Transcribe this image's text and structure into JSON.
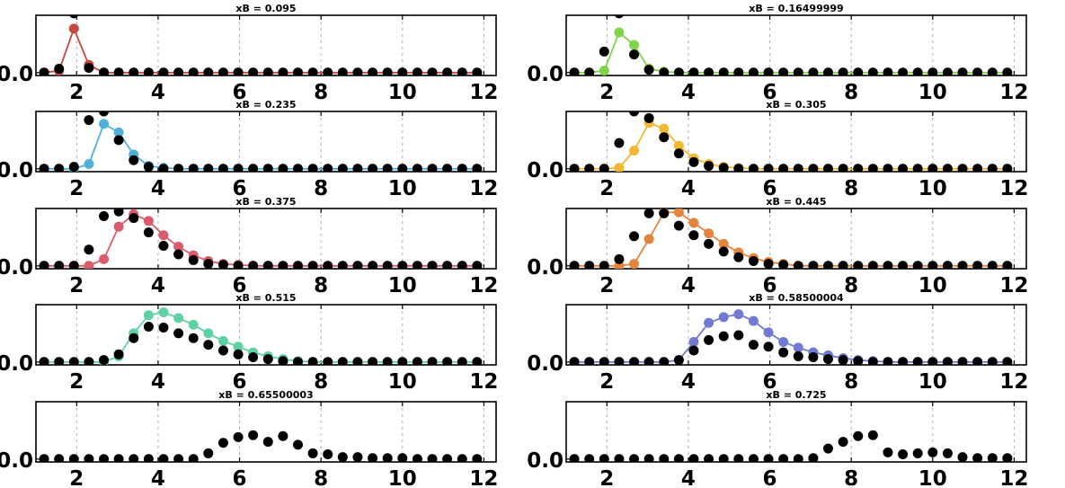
{
  "figure": {
    "xticks": [
      2,
      4,
      6,
      8,
      10,
      12
    ],
    "xlim": [
      1,
      12.3
    ],
    "ylim": [
      -0.03,
      0.6
    ],
    "ytick_label": "0.0",
    "series_colors": [
      "#c9473d",
      "#7fd44a",
      "#4fb0dc",
      "#f2b733",
      "#d95b6c",
      "#e4843f",
      "#5fd1a2",
      "#6f7ad0",
      "",
      ""
    ]
  },
  "chart_data": [
    {
      "type": "scatter",
      "title": "xB = 0.095",
      "x": [
        1.2,
        1.567,
        1.933,
        2.3,
        2.667,
        3.033,
        3.4,
        3.767,
        4.133,
        4.5,
        4.867,
        5.233,
        5.6,
        5.967,
        6.333,
        6.7,
        7.067,
        7.433,
        7.8,
        8.167,
        8.533,
        8.9,
        9.267,
        9.633,
        10,
        10.367,
        10.733,
        11.1,
        11.467,
        11.833
      ],
      "model": [
        0,
        0.02,
        0.46,
        0.08,
        0,
        0,
        0,
        0,
        0,
        0,
        0,
        0,
        0,
        0,
        0,
        0,
        0,
        0,
        0,
        0,
        0,
        0,
        0,
        0,
        0,
        0,
        0,
        0,
        0,
        0
      ],
      "data": [
        0,
        0.04,
        0.62,
        0.05,
        0,
        0,
        0,
        0,
        0,
        0,
        0,
        0,
        0,
        0,
        0,
        0,
        0,
        0,
        0,
        0,
        0,
        0,
        0,
        0,
        0,
        0,
        0,
        0,
        0,
        0
      ]
    },
    {
      "type": "scatter",
      "title": "xB = 0.16499999",
      "x": [
        1.2,
        1.567,
        1.933,
        2.3,
        2.667,
        3.033,
        3.4,
        3.767,
        4.133,
        4.5,
        4.867,
        5.233,
        5.6,
        5.967,
        6.333,
        6.7,
        7.067,
        7.433,
        7.8,
        8.167,
        8.533,
        8.9,
        9.267,
        9.633,
        10,
        10.367,
        10.733,
        11.1,
        11.467,
        11.833
      ],
      "model": [
        0,
        0,
        0.02,
        0.42,
        0.29,
        0.04,
        0.01,
        0,
        0,
        0,
        0,
        0,
        0,
        0,
        0,
        0,
        0,
        0,
        0,
        0,
        0,
        0,
        0,
        0,
        0,
        0,
        0,
        0,
        0,
        0
      ],
      "data": [
        0,
        0,
        0.22,
        0.62,
        0.19,
        0.03,
        0,
        0,
        0,
        0,
        0,
        0,
        0,
        0,
        0,
        0,
        0,
        0,
        0,
        0,
        0,
        0,
        0,
        0,
        0,
        0,
        0,
        0,
        0,
        0
      ]
    },
    {
      "type": "scatter",
      "title": "xB = 0.235",
      "x": [
        1.2,
        1.567,
        1.933,
        2.3,
        2.667,
        3.033,
        3.4,
        3.767,
        4.133,
        4.5,
        4.867,
        5.233,
        5.6,
        5.967,
        6.333,
        6.7,
        7.067,
        7.433,
        7.8,
        8.167,
        8.533,
        8.9,
        9.267,
        9.633,
        10,
        10.367,
        10.733,
        11.1,
        11.467,
        11.833
      ],
      "model": [
        0,
        0,
        0,
        0.05,
        0.47,
        0.38,
        0.15,
        0.03,
        0.01,
        0,
        0,
        0,
        0,
        0,
        0,
        0,
        0,
        0,
        0,
        0,
        0,
        0,
        0,
        0,
        0,
        0,
        0,
        0,
        0,
        0
      ],
      "data": [
        0,
        0,
        0.02,
        0.51,
        0.6,
        0.3,
        0.09,
        0.02,
        0,
        0,
        0,
        0,
        0,
        0,
        0,
        0,
        0,
        0,
        0,
        0,
        0,
        0,
        0,
        0,
        0,
        0,
        0,
        0,
        0,
        0
      ]
    },
    {
      "type": "scatter",
      "title": "xB = 0.305",
      "x": [
        1.2,
        1.567,
        1.933,
        2.3,
        2.667,
        3.033,
        3.4,
        3.767,
        4.133,
        4.5,
        4.867,
        5.233,
        5.6,
        5.967,
        6.333,
        6.7,
        7.067,
        7.433,
        7.8,
        8.167,
        8.533,
        8.9,
        9.267,
        9.633,
        10,
        10.367,
        10.733,
        11.1,
        11.467,
        11.833
      ],
      "model": [
        0,
        0,
        0,
        0.01,
        0.19,
        0.48,
        0.42,
        0.24,
        0.11,
        0.05,
        0.02,
        0.01,
        0,
        0,
        0,
        0,
        0,
        0,
        0,
        0,
        0,
        0,
        0,
        0,
        0,
        0,
        0,
        0,
        0,
        0
      ],
      "data": [
        0,
        0,
        0,
        0.27,
        0.6,
        0.53,
        0.33,
        0.16,
        0.07,
        0.03,
        0.01,
        0,
        0,
        0,
        0,
        0,
        0,
        0,
        0,
        0,
        0,
        0,
        0,
        0,
        0,
        0,
        0,
        0,
        0,
        0
      ]
    },
    {
      "type": "scatter",
      "title": "xB = 0.375",
      "x": [
        1.2,
        1.567,
        1.933,
        2.3,
        2.667,
        3.033,
        3.4,
        3.767,
        4.133,
        4.5,
        4.867,
        5.233,
        5.6,
        5.967,
        6.333,
        6.7,
        7.067,
        7.433,
        7.8,
        8.167,
        8.533,
        8.9,
        9.267,
        9.633,
        10,
        10.367,
        10.733,
        11.1,
        11.467,
        11.833
      ],
      "model": [
        0,
        0,
        0,
        0,
        0.07,
        0.41,
        0.54,
        0.47,
        0.32,
        0.2,
        0.11,
        0.05,
        0.02,
        0.01,
        0,
        0,
        0,
        0,
        0,
        0,
        0,
        0,
        0,
        0,
        0,
        0,
        0,
        0,
        0,
        0
      ],
      "data": [
        0,
        0,
        0,
        0.17,
        0.52,
        0.57,
        0.5,
        0.35,
        0.21,
        0.12,
        0.06,
        0.02,
        0.01,
        0,
        0,
        0,
        0,
        0,
        0,
        0,
        0,
        0,
        0,
        0,
        0,
        0,
        0,
        0,
        0,
        0
      ]
    },
    {
      "type": "scatter",
      "title": "xB = 0.445",
      "x": [
        1.2,
        1.567,
        1.933,
        2.3,
        2.667,
        3.033,
        3.4,
        3.767,
        4.133,
        4.5,
        4.867,
        5.233,
        5.6,
        5.967,
        6.333,
        6.7,
        7.067,
        7.433,
        7.8,
        8.167,
        8.533,
        8.9,
        9.267,
        9.633,
        10,
        10.367,
        10.733,
        11.1,
        11.467,
        11.833
      ],
      "model": [
        0,
        0,
        0,
        0,
        0.02,
        0.28,
        0.56,
        0.56,
        0.45,
        0.34,
        0.23,
        0.14,
        0.08,
        0.04,
        0.02,
        0,
        0,
        0,
        0,
        0,
        0,
        0,
        0,
        0,
        0,
        0,
        0,
        0,
        0,
        0
      ],
      "data": [
        0,
        0,
        0,
        0.07,
        0.31,
        0.55,
        0.55,
        0.42,
        0.32,
        0.23,
        0.15,
        0.09,
        0.05,
        0.02,
        0.01,
        0,
        0,
        0,
        0,
        0,
        0,
        0,
        0,
        0,
        0,
        0,
        0,
        0,
        0,
        0
      ]
    },
    {
      "type": "scatter",
      "title": "xB = 0.515",
      "x": [
        1.2,
        1.567,
        1.933,
        2.3,
        2.667,
        3.033,
        3.4,
        3.767,
        4.133,
        4.5,
        4.867,
        5.233,
        5.6,
        5.967,
        6.333,
        6.7,
        7.067,
        7.433,
        7.8,
        8.167,
        8.533,
        8.9,
        9.267,
        9.633,
        10,
        10.367,
        10.733,
        11.1,
        11.467,
        11.833
      ],
      "model": [
        0,
        0,
        0,
        0,
        0,
        0.06,
        0.3,
        0.49,
        0.52,
        0.46,
        0.39,
        0.3,
        0.22,
        0.16,
        0.1,
        0.06,
        0.03,
        0.01,
        0,
        0,
        0,
        0,
        0,
        0,
        0,
        0,
        0,
        0,
        0,
        0
      ],
      "data": [
        0,
        0,
        0,
        0,
        0.02,
        0.08,
        0.25,
        0.37,
        0.36,
        0.3,
        0.25,
        0.18,
        0.12,
        0.08,
        0.05,
        0.03,
        0.01,
        0,
        0,
        0,
        0,
        0,
        0,
        0,
        0,
        0,
        0,
        0,
        0,
        0
      ]
    },
    {
      "type": "scatter",
      "title": "xB = 0.58500004",
      "x": [
        1.2,
        1.567,
        1.933,
        2.3,
        2.667,
        3.033,
        3.4,
        3.767,
        4.133,
        4.5,
        4.867,
        5.233,
        5.6,
        5.967,
        6.333,
        6.7,
        7.067,
        7.433,
        7.8,
        8.167,
        8.533,
        8.9,
        9.267,
        9.633,
        10,
        10.367,
        10.733,
        11.1,
        11.467,
        11.833
      ],
      "model": [
        0,
        0,
        0,
        0,
        0,
        0,
        0,
        0.02,
        0.21,
        0.41,
        0.47,
        0.5,
        0.43,
        0.31,
        0.21,
        0.15,
        0.1,
        0.07,
        0.04,
        0.02,
        0.01,
        0,
        0,
        0,
        0,
        0,
        0,
        0,
        0,
        0
      ],
      "data": [
        0,
        0,
        0,
        0,
        0,
        0,
        0,
        0.02,
        0.12,
        0.23,
        0.27,
        0.28,
        0.18,
        0.16,
        0.1,
        0.06,
        0.05,
        0.03,
        0.02,
        0.01,
        0,
        0,
        0,
        0,
        0,
        0,
        0,
        0,
        0,
        0
      ]
    },
    {
      "type": "scatter",
      "title": "xB = 0.65500003",
      "x": [
        1.2,
        1.567,
        1.933,
        2.3,
        2.667,
        3.033,
        3.4,
        3.767,
        4.133,
        4.5,
        4.867,
        5.233,
        5.6,
        5.967,
        6.333,
        6.7,
        7.067,
        7.433,
        7.8,
        8.167,
        8.533,
        8.9,
        9.267,
        9.633,
        10,
        10.367,
        10.733,
        11.1,
        11.467,
        11.833
      ],
      "model": [],
      "data": [
        0,
        0,
        0,
        0,
        0,
        0,
        0,
        0,
        0,
        0,
        0,
        0.06,
        0.17,
        0.23,
        0.25,
        0.18,
        0.24,
        0.15,
        0.06,
        0.05,
        0.02,
        0.02,
        0.01,
        0.01,
        0.01,
        0,
        0,
        0,
        0,
        0
      ]
    },
    {
      "type": "scatter",
      "title": "xB = 0.725",
      "x": [
        1.2,
        1.567,
        1.933,
        2.3,
        2.667,
        3.033,
        3.4,
        3.767,
        4.133,
        4.5,
        4.867,
        5.233,
        5.6,
        5.967,
        6.333,
        6.7,
        7.067,
        7.433,
        7.8,
        8.167,
        8.533,
        8.9,
        9.267,
        9.633,
        10,
        10.367,
        10.733,
        11.1,
        11.467,
        11.833
      ],
      "model": [],
      "data": [
        0,
        0,
        0,
        0,
        0,
        0,
        0,
        0,
        0,
        0,
        0,
        0,
        0,
        0,
        0,
        0,
        0.01,
        0.11,
        0.18,
        0.24,
        0.25,
        0.07,
        0.05,
        0.06,
        0.07,
        0.06,
        0.02,
        0.01,
        0.01,
        0.01
      ]
    }
  ]
}
